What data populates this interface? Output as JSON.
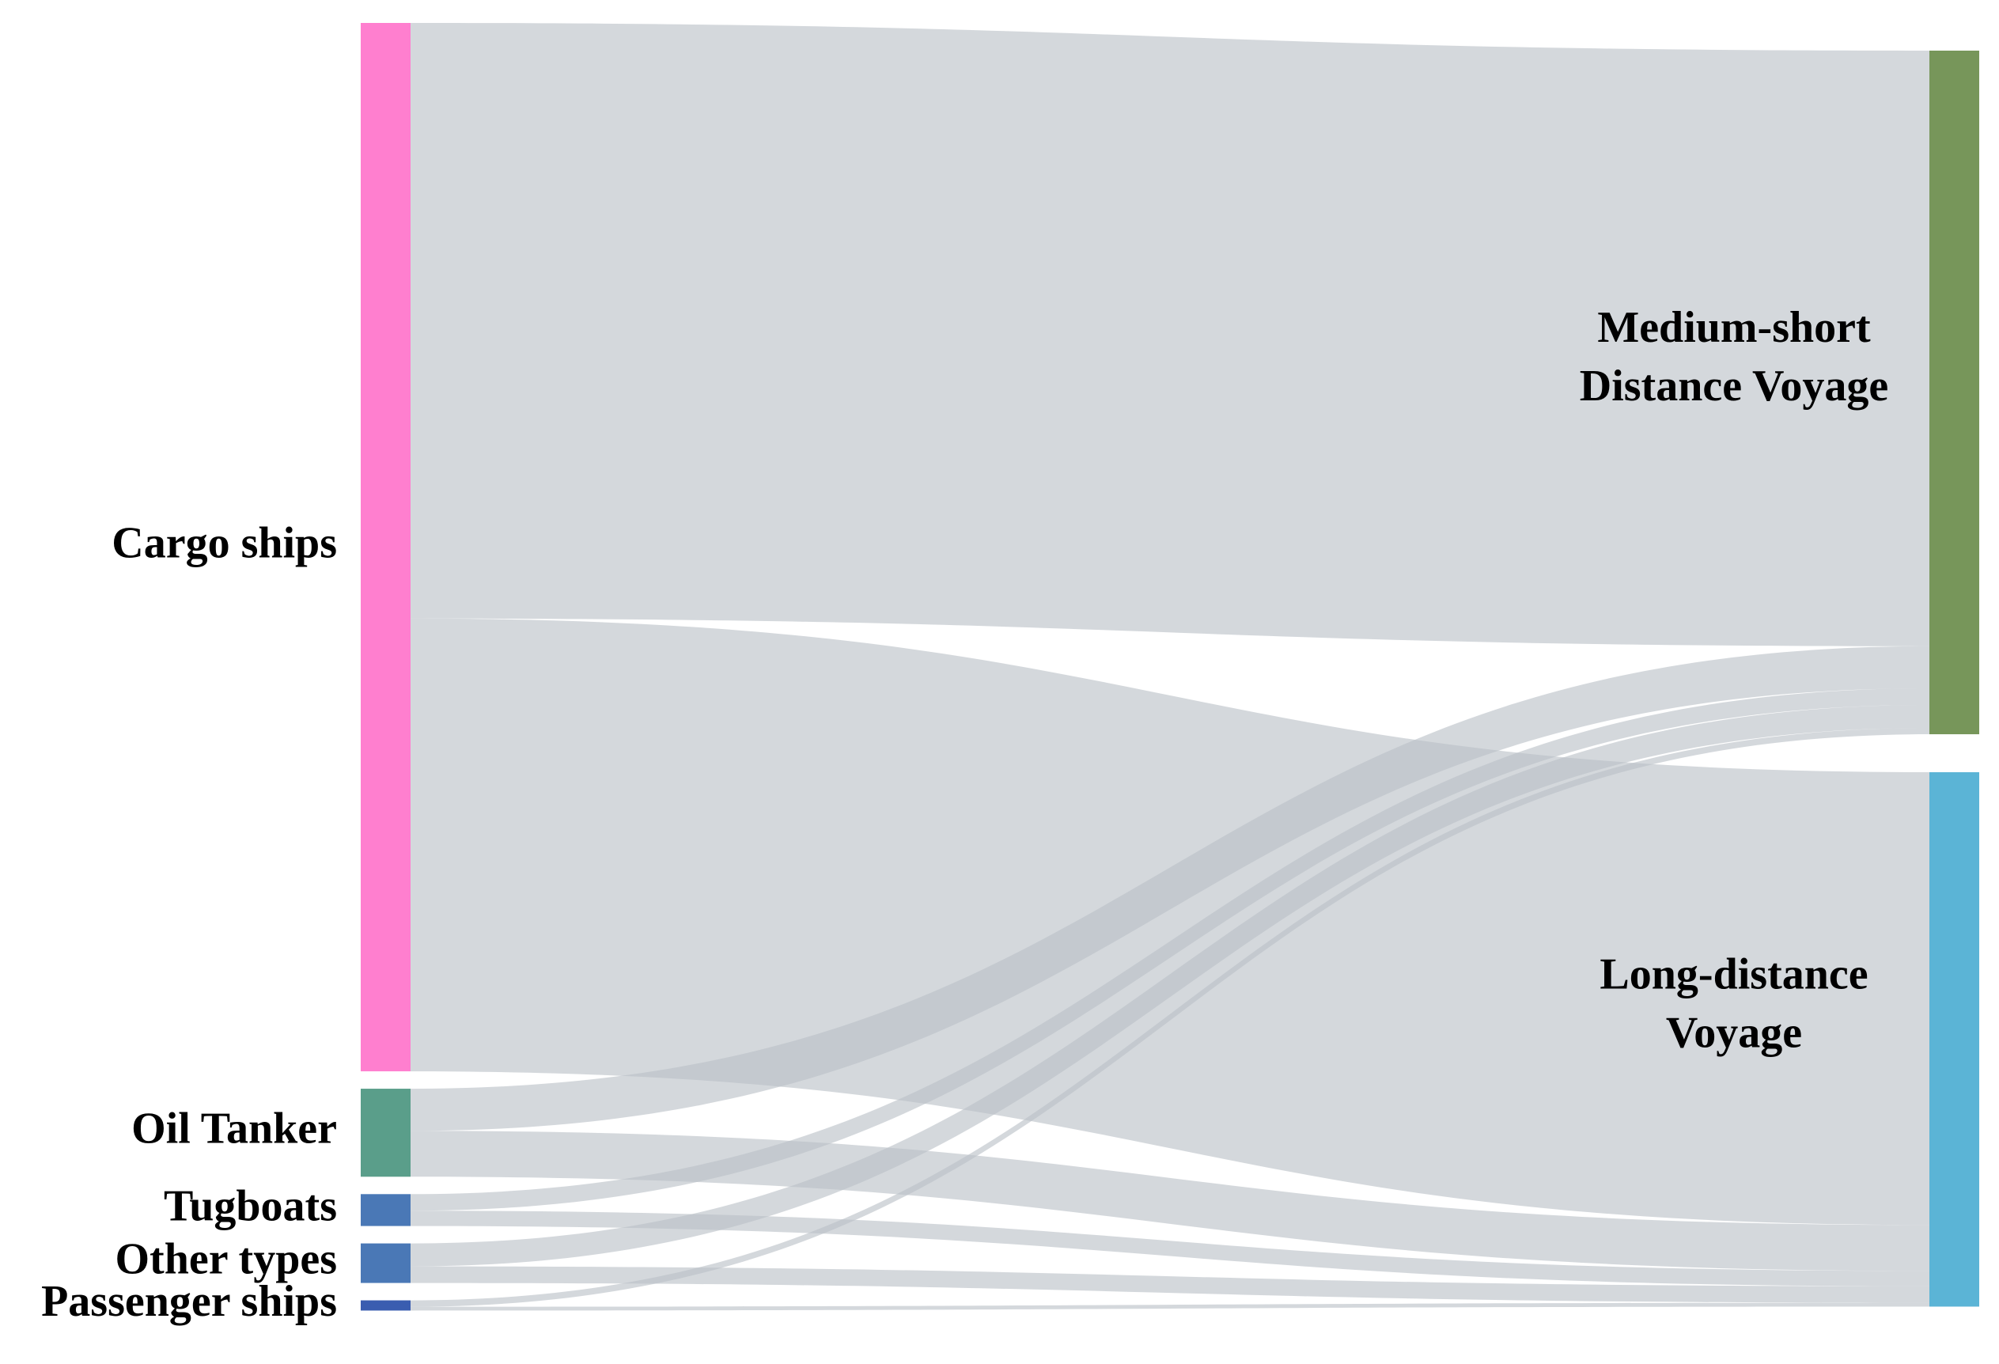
{
  "chart_data": {
    "type": "sankey",
    "link_color": "#b9c0c6",
    "nodes": [
      {
        "label": [
          "Cargo ships"
        ],
        "color": "#ff7fcf",
        "side": "left"
      },
      {
        "label": [
          "Oil Tanker"
        ],
        "color": "#5a9e8a",
        "side": "left"
      },
      {
        "label": [
          "Tugboats"
        ],
        "color": "#4a78b6",
        "side": "left"
      },
      {
        "label": [
          "Other types"
        ],
        "color": "#4a78b6",
        "side": "left"
      },
      {
        "label": [
          "Passenger ships"
        ],
        "color": "#3a5db0",
        "side": "left"
      },
      {
        "label": [
          "Medium-short",
          "Distance Voyage"
        ],
        "color": "#77965a",
        "side": "right"
      },
      {
        "label": [
          "Long-distance",
          "Voyage"
        ],
        "color": "#5bb4d6",
        "side": "right"
      }
    ],
    "links": [
      {
        "source": 0,
        "target": 5,
        "value": 467
      },
      {
        "source": 0,
        "target": 6,
        "value": 355
      },
      {
        "source": 1,
        "target": 5,
        "value": 33
      },
      {
        "source": 1,
        "target": 6,
        "value": 36
      },
      {
        "source": 2,
        "target": 5,
        "value": 13
      },
      {
        "source": 2,
        "target": 6,
        "value": 12
      },
      {
        "source": 3,
        "target": 5,
        "value": 18
      },
      {
        "source": 3,
        "target": 6,
        "value": 13
      },
      {
        "source": 4,
        "target": 5,
        "value": 5
      },
      {
        "source": 4,
        "target": 6,
        "value": 3
      }
    ]
  }
}
